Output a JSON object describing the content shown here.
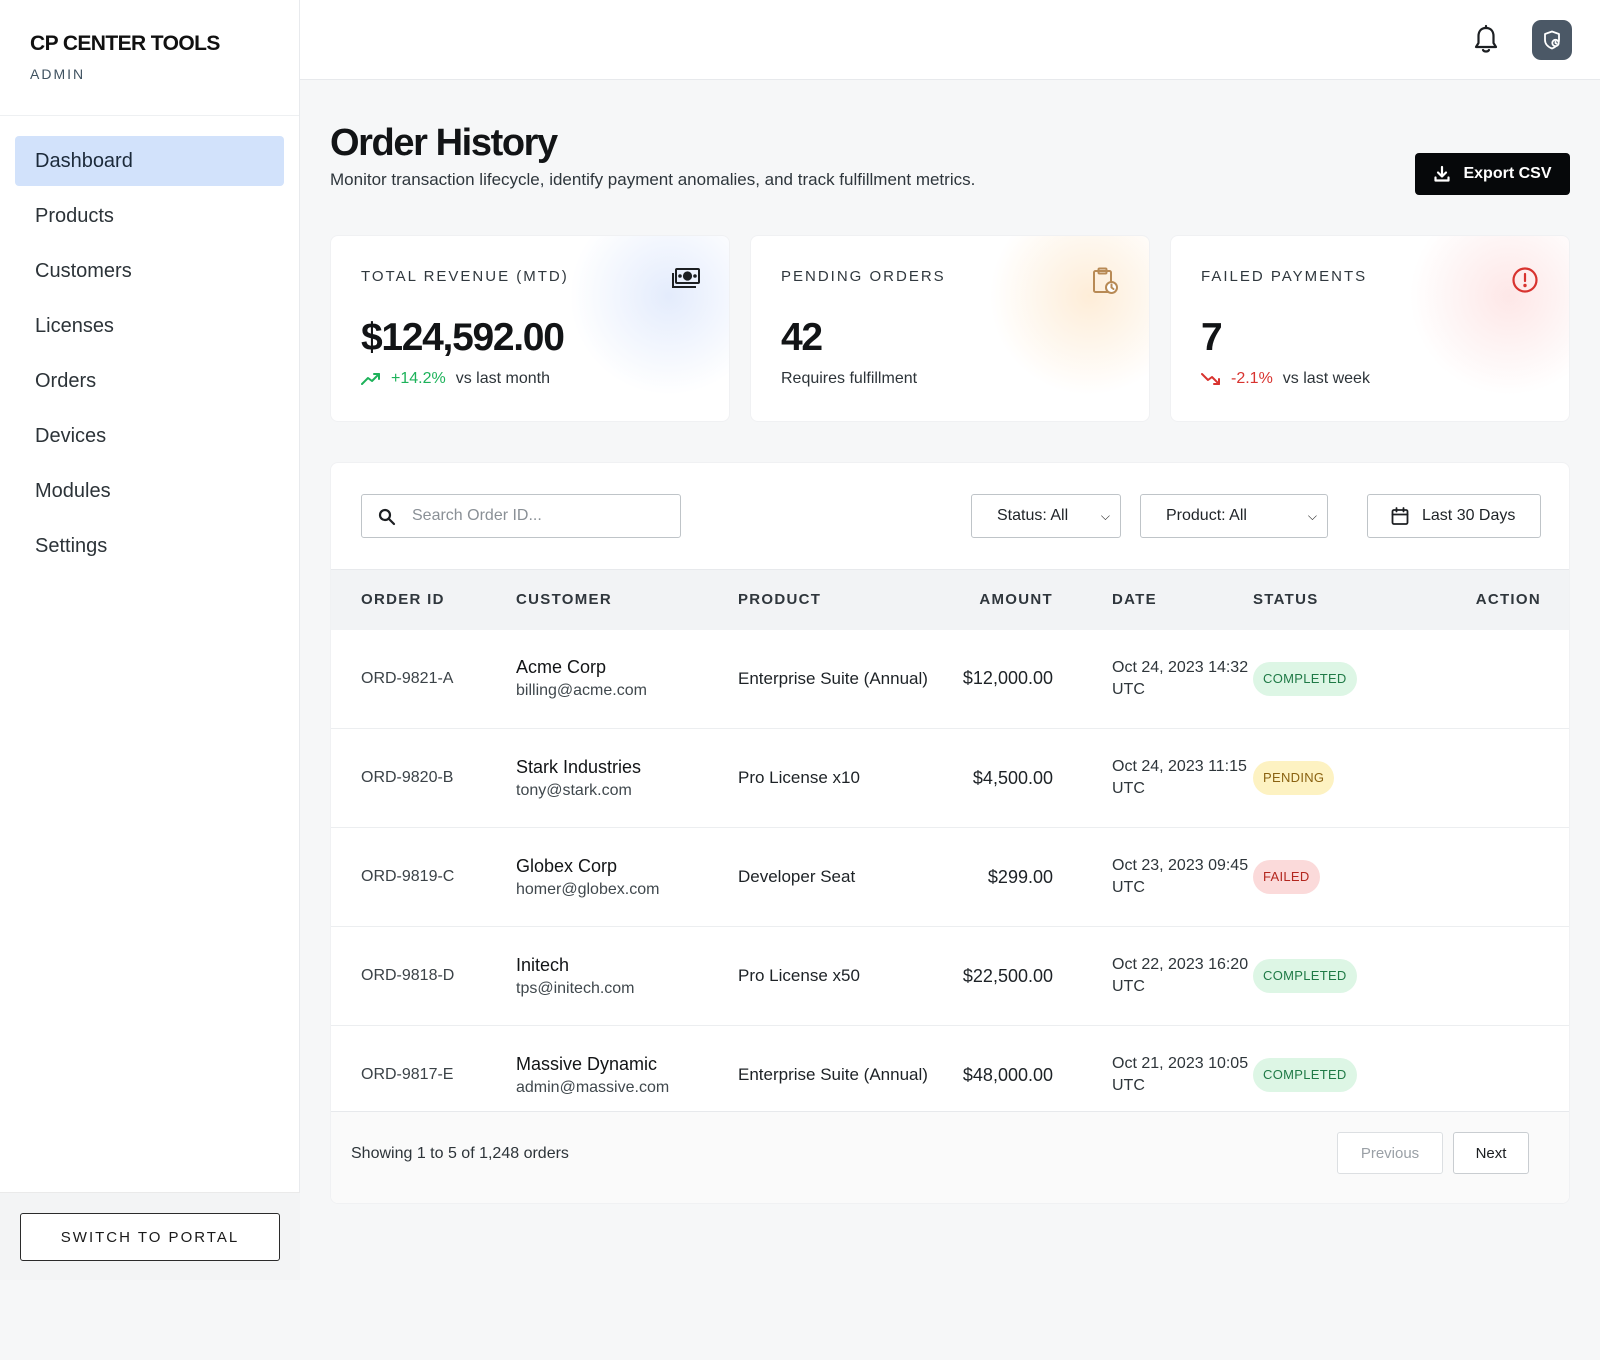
{
  "brand": {
    "title": "CP CENTER TOOLS",
    "subtitle": "ADMIN"
  },
  "sidebar": {
    "items": [
      {
        "label": "Dashboard",
        "active": true
      },
      {
        "label": "Products"
      },
      {
        "label": "Customers"
      },
      {
        "label": "Licenses"
      },
      {
        "label": "Orders"
      },
      {
        "label": "Devices"
      },
      {
        "label": "Modules"
      },
      {
        "label": "Settings"
      }
    ],
    "switch_label": "SWITCH TO PORTAL"
  },
  "header": {
    "bell_icon": "bell-icon",
    "avatar_icon": "shield-user-icon"
  },
  "page": {
    "title": "Order History",
    "subtitle": "Monitor transaction lifecycle, identify payment anomalies, and track fulfillment metrics.",
    "export_label": "Export CSV"
  },
  "cards": [
    {
      "label": "TOTAL REVENUE (MTD)",
      "value": "$124,592.00",
      "delta": "+14.2%",
      "meta": "vs last month",
      "icon": "money-icon",
      "accent": "#1db25a"
    },
    {
      "label": "PENDING ORDERS",
      "value": "42",
      "meta": "Requires fulfillment",
      "icon": "clipboard-clock-icon",
      "accent": "#b88a55"
    },
    {
      "label": "FAILED PAYMENTS",
      "value": "7",
      "delta": "-2.1%",
      "meta": "vs last week",
      "icon": "alert-circle-icon",
      "accent": "#d8332f"
    }
  ],
  "filters": {
    "search_placeholder": "Search Order ID...",
    "status_value": "Status: All",
    "product_value": "Product: All",
    "date_range": "Last 30 Days"
  },
  "table": {
    "headers": [
      "ORDER ID",
      "CUSTOMER",
      "PRODUCT",
      "AMOUNT",
      "DATE",
      "STATUS",
      "ACTION"
    ],
    "rows": [
      {
        "id": "ORD-9821-A",
        "customer": "Acme Corp",
        "email": "billing@acme.com",
        "product": "Enterprise Suite (Annual)",
        "amount": "$12,000.00",
        "date": "Oct 24, 2023 14:32 UTC",
        "status": "COMPLETED"
      },
      {
        "id": "ORD-9820-B",
        "customer": "Stark Industries",
        "email": "tony@stark.com",
        "product": "Pro License x10",
        "amount": "$4,500.00",
        "date": "Oct 24, 2023 11:15 UTC",
        "status": "PENDING"
      },
      {
        "id": "ORD-9819-C",
        "customer": "Globex Corp",
        "email": "homer@globex.com",
        "product": "Developer Seat",
        "amount": "$299.00",
        "date": "Oct 23, 2023 09:45 UTC",
        "status": "FAILED"
      },
      {
        "id": "ORD-9818-D",
        "customer": "Initech",
        "email": "tps@initech.com",
        "product": "Pro License x50",
        "amount": "$22,500.00",
        "date": "Oct 22, 2023 16:20 UTC",
        "status": "COMPLETED"
      },
      {
        "id": "ORD-9817-E",
        "customer": "Massive Dynamic",
        "email": "admin@massive.com",
        "product": "Enterprise Suite (Annual)",
        "amount": "$48,000.00",
        "date": "Oct 21, 2023 10:05 UTC",
        "status": "COMPLETED"
      }
    ]
  },
  "pagination": {
    "summary": "Showing 1 to 5 of 1,248 orders",
    "prev_label": "Previous",
    "next_label": "Next"
  }
}
